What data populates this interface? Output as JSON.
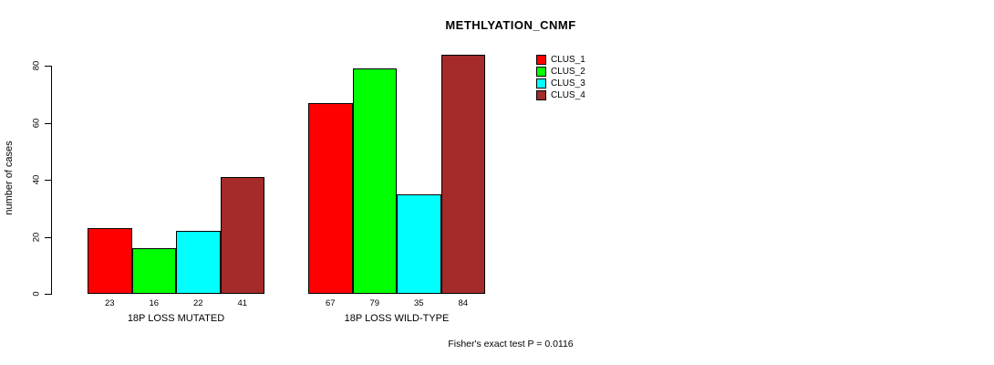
{
  "title": "METHLYATION_CNMF",
  "footer": {
    "caption": "Fisher's exact test P = 0.0116"
  },
  "chart_data": {
    "type": "bar",
    "title": "METHLYATION_CNMF",
    "xlabel": "",
    "ylabel": "number of cases",
    "ylim": [
      0,
      84
    ],
    "yticks": [
      0,
      20,
      40,
      60,
      80
    ],
    "grid": false,
    "legend_position": "top-right",
    "categories": [
      "18P LOSS MUTATED",
      "18P LOSS WILD-TYPE"
    ],
    "series": [
      {
        "name": "CLUS_1",
        "color": "#ff0000",
        "values": [
          23,
          67
        ]
      },
      {
        "name": "CLUS_2",
        "color": "#00ff00",
        "values": [
          16,
          79
        ]
      },
      {
        "name": "CLUS_3",
        "color": "#00ffff",
        "values": [
          22,
          35
        ]
      },
      {
        "name": "CLUS_4",
        "color": "#a52a2a",
        "values": [
          41,
          84
        ]
      }
    ],
    "annotation": "Fisher's exact test P = 0.0116"
  }
}
